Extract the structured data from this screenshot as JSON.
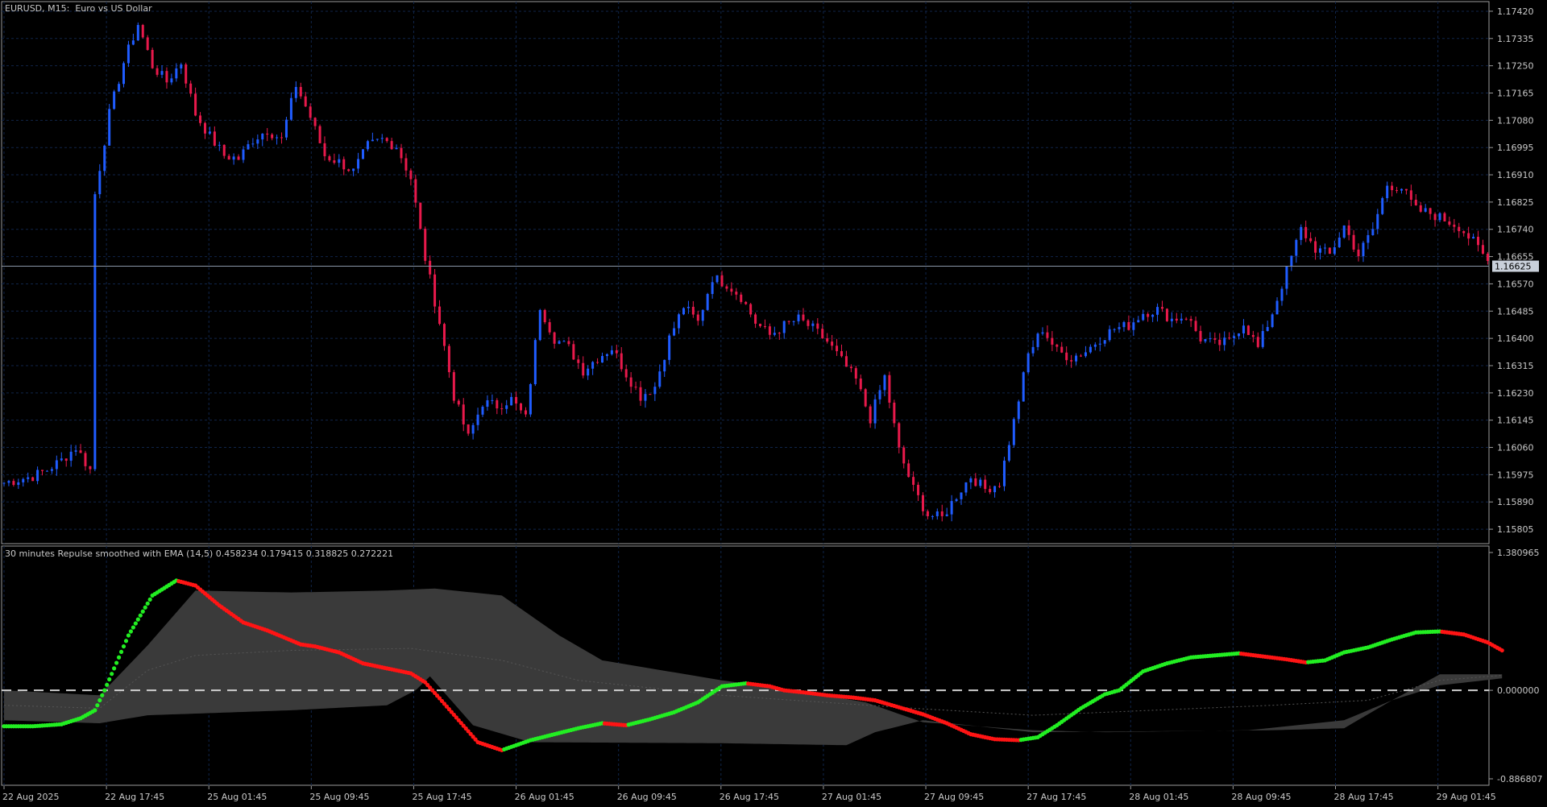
{
  "main_chart": {
    "title": "EURUSD, M15:  Euro vs US Dollar",
    "price_levels": [
      "1.17420",
      "1.17335",
      "1.17250",
      "1.17165",
      "1.17080",
      "1.16995",
      "1.16910",
      "1.16825",
      "1.16740",
      "1.16655",
      "1.16570",
      "1.16485",
      "1.16400",
      "1.16315",
      "1.16230",
      "1.16145",
      "1.16060",
      "1.15975",
      "1.15890",
      "1.15805"
    ],
    "current_price": "1.16625",
    "price_range": [
      1.1576,
      1.1745
    ]
  },
  "indicator": {
    "label": "30 minutes Repulse smoothed with EMA (14,5) 0.458234 0.179415 0.318825 0.272221",
    "levels": [
      "1.380965",
      "0.000000",
      "-0.886807"
    ],
    "range": [
      -0.886807,
      1.380965
    ]
  },
  "time_axis": [
    "22 Aug 2025",
    "22 Aug 17:45",
    "25 Aug 01:45",
    "25 Aug 09:45",
    "25 Aug 17:45",
    "26 Aug 01:45",
    "26 Aug 09:45",
    "26 Aug 17:45",
    "27 Aug 01:45",
    "27 Aug 09:45",
    "27 Aug 17:45",
    "28 Aug 01:45",
    "28 Aug 09:45",
    "28 Aug 17:45",
    "29 Aug 01:45"
  ],
  "colors": {
    "bull_candle": "#1f5cff",
    "bear_candle": "#e8194b",
    "rising_line": "#22ee22",
    "falling_line": "#ff1414",
    "band_fill": "#3a3a3a",
    "grid": "#10254a",
    "price_line": "#8a96a8"
  },
  "chart_data": [
    {
      "type": "candlestick",
      "title": "EURUSD, M15:  Euro vs US Dollar",
      "x": [
        "22 Aug 2025",
        "22 Aug 17:45",
        "25 Aug 01:45",
        "25 Aug 09:45",
        "25 Aug 17:45",
        "26 Aug 01:45",
        "26 Aug 09:45",
        "26 Aug 17:45",
        "27 Aug 01:45",
        "27 Aug 09:45",
        "27 Aug 17:45",
        "28 Aug 01:45",
        "28 Aug 09:45",
        "28 Aug 17:45",
        "29 Aug 01:45"
      ],
      "close_path": [
        [
          0,
          1.1595
        ],
        [
          3,
          1.1596
        ],
        [
          6,
          1.1597
        ],
        [
          9,
          1.1599
        ],
        [
          12,
          1.1602
        ],
        [
          15,
          1.1606
        ],
        [
          18,
          1.1599
        ],
        [
          19,
          1.1685
        ],
        [
          22,
          1.171
        ],
        [
          25,
          1.1726
        ],
        [
          28,
          1.1738
        ],
        [
          31,
          1.1725
        ],
        [
          34,
          1.172
        ],
        [
          37,
          1.1726
        ],
        [
          40,
          1.171
        ],
        [
          43,
          1.1703
        ],
        [
          46,
          1.1697
        ],
        [
          49,
          1.1696
        ],
        [
          52,
          1.1702
        ],
        [
          55,
          1.1705
        ],
        [
          58,
          1.1702
        ],
        [
          61,
          1.1719
        ],
        [
          64,
          1.1709
        ],
        [
          67,
          1.1697
        ],
        [
          70,
          1.1695
        ],
        [
          73,
          1.1692
        ],
        [
          76,
          1.17
        ],
        [
          79,
          1.1702
        ],
        [
          82,
          1.17
        ],
        [
          85,
          1.169
        ],
        [
          88,
          1.1665
        ],
        [
          91,
          1.1645
        ],
        [
          94,
          1.1622
        ],
        [
          97,
          1.1609
        ],
        [
          100,
          1.162
        ],
        [
          103,
          1.1619
        ],
        [
          106,
          1.1621
        ],
        [
          109,
          1.1615
        ],
        [
          112,
          1.165
        ],
        [
          115,
          1.164
        ],
        [
          118,
          1.1637
        ],
        [
          121,
          1.163
        ],
        [
          124,
          1.1634
        ],
        [
          127,
          1.1637
        ],
        [
          130,
          1.1629
        ],
        [
          133,
          1.1622
        ],
        [
          136,
          1.1625
        ],
        [
          139,
          1.164
        ],
        [
          142,
          1.165
        ],
        [
          145,
          1.1645
        ],
        [
          148,
          1.1659
        ],
        [
          151,
          1.1657
        ],
        [
          154,
          1.1653
        ],
        [
          157,
          1.1645
        ],
        [
          160,
          1.1641
        ],
        [
          163,
          1.1644
        ],
        [
          166,
          1.1646
        ],
        [
          169,
          1.1643
        ],
        [
          172,
          1.1639
        ],
        [
          175,
          1.1633
        ],
        [
          178,
          1.1627
        ],
        [
          181,
          1.1615
        ],
        [
          184,
          1.1628
        ],
        [
          187,
          1.1605
        ],
        [
          190,
          1.1593
        ],
        [
          193,
          1.1585
        ],
        [
          196,
          1.1584
        ],
        [
          199,
          1.1591
        ],
        [
          202,
          1.1597
        ],
        [
          205,
          1.1593
        ],
        [
          208,
          1.1595
        ],
        [
          211,
          1.1614
        ],
        [
          214,
          1.1635
        ],
        [
          217,
          1.1643
        ],
        [
          220,
          1.1636
        ],
        [
          223,
          1.1634
        ],
        [
          226,
          1.1636
        ],
        [
          229,
          1.164
        ],
        [
          232,
          1.1643
        ],
        [
          235,
          1.1644
        ],
        [
          238,
          1.1648
        ],
        [
          241,
          1.1649
        ],
        [
          244,
          1.1646
        ],
        [
          247,
          1.1647
        ],
        [
          250,
          1.164
        ],
        [
          253,
          1.1638
        ],
        [
          256,
          1.1639
        ],
        [
          259,
          1.1645
        ],
        [
          262,
          1.1637
        ],
        [
          265,
          1.1648
        ],
        [
          268,
          1.1661
        ],
        [
          271,
          1.1674
        ],
        [
          274,
          1.1668
        ],
        [
          277,
          1.1666
        ],
        [
          280,
          1.1675
        ],
        [
          283,
          1.1666
        ],
        [
          286,
          1.1674
        ],
        [
          289,
          1.1688
        ],
        [
          292,
          1.1687
        ],
        [
          295,
          1.168
        ],
        [
          298,
          1.1679
        ],
        [
          301,
          1.1677
        ],
        [
          304,
          1.1675
        ],
        [
          307,
          1.167
        ],
        [
          310,
          1.1664
        ]
      ],
      "current_price": 1.16625,
      "ylim": [
        1.1576,
        1.1745
      ]
    },
    {
      "type": "line",
      "title": "30 minutes Repulse smoothed with EMA (14,5) 0.458234 0.179415 0.318825 0.272221",
      "series": [
        {
          "values": [
            [
              0,
              -0.36
            ],
            [
              6,
              -0.36
            ],
            [
              12,
              -0.34
            ],
            [
              16,
              -0.28
            ],
            [
              19,
              -0.2
            ],
            [
              21,
              0.0
            ],
            [
              26,
              0.55
            ],
            [
              31,
              0.95
            ],
            [
              36,
              1.1
            ],
            [
              40,
              1.05
            ],
            [
              45,
              0.85
            ],
            [
              50,
              0.68
            ],
            [
              55,
              0.6
            ],
            [
              60,
              0.5
            ],
            [
              62,
              0.46
            ],
            [
              65,
              0.44
            ],
            [
              70,
              0.38
            ],
            [
              75,
              0.27
            ],
            [
              80,
              0.22
            ],
            [
              85,
              0.17
            ],
            [
              88,
              0.08
            ],
            [
              91,
              -0.08
            ],
            [
              95,
              -0.3
            ],
            [
              99,
              -0.52
            ],
            [
              104,
              -0.6
            ],
            [
              110,
              -0.5
            ],
            [
              115,
              -0.44
            ],
            [
              120,
              -0.38
            ],
            [
              125,
              -0.33
            ],
            [
              130,
              -0.35
            ],
            [
              135,
              -0.29
            ],
            [
              140,
              -0.22
            ],
            [
              145,
              -0.12
            ],
            [
              150,
              0.04
            ],
            [
              155,
              0.07
            ],
            [
              160,
              0.04
            ],
            [
              163,
              0.0
            ],
            [
              167,
              -0.02
            ],
            [
              172,
              -0.05
            ],
            [
              177,
              -0.07
            ],
            [
              182,
              -0.1
            ],
            [
              187,
              -0.17
            ],
            [
              192,
              -0.24
            ],
            [
              197,
              -0.33
            ],
            [
              202,
              -0.44
            ],
            [
              207,
              -0.49
            ],
            [
              212,
              -0.5
            ],
            [
              216,
              -0.47
            ],
            [
              220,
              -0.35
            ],
            [
              225,
              -0.18
            ],
            [
              230,
              -0.04
            ],
            [
              233,
              0.0
            ],
            [
              238,
              0.19
            ],
            [
              243,
              0.27
            ],
            [
              248,
              0.33
            ],
            [
              253,
              0.35
            ],
            [
              258,
              0.37
            ],
            [
              263,
              0.34
            ],
            [
              268,
              0.31
            ],
            [
              272,
              0.28
            ],
            [
              276,
              0.3
            ],
            [
              280,
              0.38
            ],
            [
              285,
              0.43
            ],
            [
              290,
              0.51
            ],
            [
              295,
              0.58
            ],
            [
              300,
              0.59
            ],
            [
              305,
              0.56
            ],
            [
              310,
              0.48
            ],
            [
              313,
              0.4
            ]
          ]
        },
        {
          "values": [
            [
              0,
              0.0
            ],
            [
              20,
              -0.05
            ],
            [
              30,
              0.45
            ],
            [
              40,
              1.0
            ],
            [
              60,
              0.98
            ],
            [
              80,
              1.0
            ],
            [
              90,
              1.02
            ],
            [
              104,
              0.95
            ],
            [
              116,
              0.55
            ],
            [
              125,
              0.3
            ],
            [
              150,
              0.1
            ],
            [
              165,
              0.0
            ],
            [
              180,
              -0.12
            ],
            [
              192,
              -0.32
            ],
            [
              215,
              -0.4
            ],
            [
              230,
              -0.42
            ],
            [
              260,
              -0.4
            ],
            [
              280,
              -0.3
            ],
            [
              290,
              -0.1
            ],
            [
              300,
              0.16
            ],
            [
              313,
              0.16
            ]
          ]
        },
        {
          "values": [
            [
              0,
              -0.3
            ],
            [
              20,
              -0.33
            ],
            [
              30,
              -0.25
            ],
            [
              60,
              -0.2
            ],
            [
              80,
              -0.15
            ],
            [
              86,
              0.0
            ],
            [
              89,
              0.14
            ],
            [
              98,
              -0.35
            ],
            [
              110,
              -0.52
            ],
            [
              150,
              -0.53
            ],
            [
              176,
              -0.55
            ],
            [
              182,
              -0.42
            ],
            [
              192,
              -0.3
            ],
            [
              215,
              -0.42
            ],
            [
              265,
              -0.4
            ],
            [
              280,
              -0.38
            ],
            [
              290,
              -0.1
            ],
            [
              300,
              0.05
            ],
            [
              313,
              0.12
            ]
          ]
        },
        {
          "values": [
            [
              0,
              -0.15
            ],
            [
              20,
              -0.18
            ],
            [
              30,
              0.2
            ],
            [
              40,
              0.35
            ],
            [
              60,
              0.4
            ],
            [
              85,
              0.42
            ],
            [
              104,
              0.3
            ],
            [
              120,
              0.1
            ],
            [
              150,
              -0.05
            ],
            [
              165,
              -0.1
            ],
            [
              190,
              -0.18
            ],
            [
              215,
              -0.25
            ],
            [
              240,
              -0.2
            ],
            [
              265,
              -0.15
            ],
            [
              285,
              -0.1
            ],
            [
              300,
              0.1
            ],
            [
              313,
              0.15
            ]
          ]
        }
      ],
      "reference_line": 0.0,
      "ylim": [
        -0.886807,
        1.380965
      ]
    }
  ]
}
